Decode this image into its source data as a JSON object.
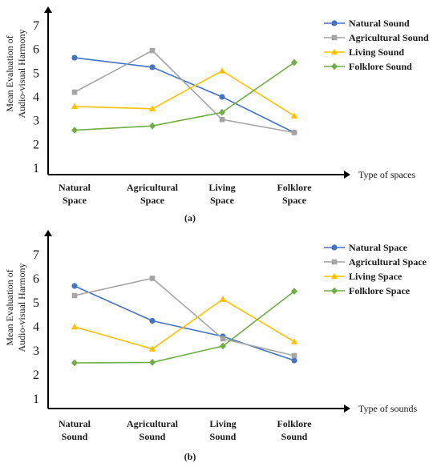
{
  "chart_data": [
    {
      "type": "line",
      "caption": "(a)",
      "ylabel": [
        "Mean Evaluation of",
        "Audio-visual Harmony"
      ],
      "xlabel": "Type of spaces",
      "yticks": [
        1,
        2,
        3,
        4,
        5,
        6,
        7
      ],
      "ylim": [
        1,
        7.6
      ],
      "categories": [
        [
          "Natural",
          "Space"
        ],
        [
          "Agricultural",
          "Space"
        ],
        [
          "Living",
          "Space"
        ],
        [
          "Folklore",
          "Space"
        ]
      ],
      "legend": "top-right",
      "series": [
        {
          "name": "Natural Sound",
          "color": "#4472C4",
          "marker": "circle",
          "values": [
            5.65,
            5.25,
            4.0,
            2.5
          ]
        },
        {
          "name": "Agricultural Sound",
          "color": "#A5A5A5",
          "marker": "square",
          "values": [
            4.2,
            5.95,
            3.05,
            2.5
          ]
        },
        {
          "name": "Living Sound",
          "color": "#FFC000",
          "marker": "triangle",
          "values": [
            3.6,
            3.5,
            5.1,
            3.2
          ]
        },
        {
          "name": "Folklore Sound",
          "color": "#70AD47",
          "marker": "diamond",
          "values": [
            2.6,
            2.78,
            3.35,
            5.45
          ]
        }
      ]
    },
    {
      "type": "line",
      "caption": "(b)",
      "ylabel": [
        "Mean Evaluation of",
        "Audio-visual Harmony"
      ],
      "xlabel": "Type of sounds",
      "yticks": [
        1,
        2,
        3,
        4,
        5,
        6,
        7
      ],
      "ylim": [
        1,
        7.6
      ],
      "categories": [
        [
          "Natural",
          "Sound"
        ],
        [
          "Agricultural",
          "Sound"
        ],
        [
          "Living",
          "Sound"
        ],
        [
          "Folklore",
          "Sound"
        ]
      ],
      "legend": "top-right",
      "series": [
        {
          "name": "Natural Space",
          "color": "#4472C4",
          "marker": "circle",
          "values": [
            5.7,
            4.25,
            3.6,
            2.6
          ]
        },
        {
          "name": "Agricultural Space",
          "color": "#A5A5A5",
          "marker": "square",
          "values": [
            5.3,
            6.02,
            3.5,
            2.8
          ]
        },
        {
          "name": "Living Space",
          "color": "#FFC000",
          "marker": "triangle",
          "values": [
            4.0,
            3.08,
            5.15,
            3.38
          ]
        },
        {
          "name": "Folklore Space",
          "color": "#70AD47",
          "marker": "diamond",
          "values": [
            2.5,
            2.52,
            3.2,
            5.48
          ]
        }
      ]
    }
  ]
}
